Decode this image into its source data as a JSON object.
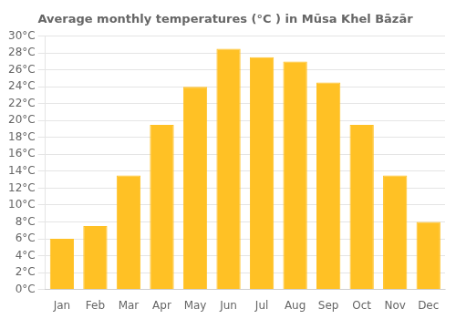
{
  "chart_data": {
    "type": "bar",
    "title": "Average monthly temperatures (°C ) in Mūsa Khel Bāzār",
    "categories": [
      "Jan",
      "Feb",
      "Mar",
      "Apr",
      "May",
      "Jun",
      "Jul",
      "Aug",
      "Sep",
      "Oct",
      "Nov",
      "Dec"
    ],
    "values": [
      6,
      7.5,
      13.5,
      19.5,
      24,
      28.5,
      27.5,
      27,
      24.5,
      19.5,
      13.5,
      8
    ],
    "color": "#FFC125",
    "ylim": [
      0,
      30
    ],
    "yticks": [
      {
        "value": 0,
        "label": "0°C"
      },
      {
        "value": 2,
        "label": "2°C"
      },
      {
        "value": 4,
        "label": "4°C"
      },
      {
        "value": 6,
        "label": "6°C"
      },
      {
        "value": 8,
        "label": "8°C"
      },
      {
        "value": 10,
        "label": "10°C"
      },
      {
        "value": 12,
        "label": "12°C"
      },
      {
        "value": 14,
        "label": "14°C"
      },
      {
        "value": 16,
        "label": "16°C"
      },
      {
        "value": 18,
        "label": "18°C"
      },
      {
        "value": 20,
        "label": "20°C"
      },
      {
        "value": 22,
        "label": "22°C"
      },
      {
        "value": 24,
        "label": "24°C"
      },
      {
        "value": 26,
        "label": "26°C"
      },
      {
        "value": 28,
        "label": "28°C"
      },
      {
        "value": 30,
        "label": "30°C"
      }
    ],
    "grid": true
  }
}
